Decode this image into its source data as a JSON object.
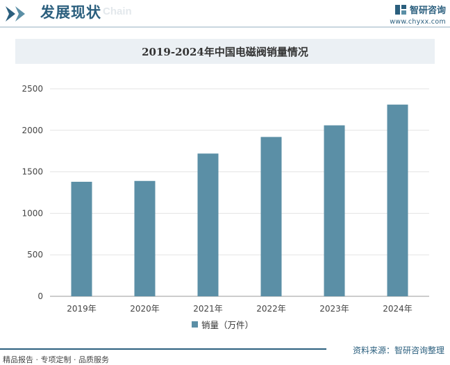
{
  "header": {
    "title": "发展现状",
    "ghost_text": "Chain",
    "brand_name": "智研咨询",
    "brand_url": "www.chyxx.com"
  },
  "chart_data": {
    "type": "bar",
    "title": "2019-2024年中国电磁阀销量情况",
    "categories": [
      "2019年",
      "2020年",
      "2021年",
      "2022年",
      "2023年",
      "2024年"
    ],
    "series": [
      {
        "name": "销量（万件）",
        "values": [
          1380,
          1390,
          1720,
          1920,
          2060,
          2310
        ],
        "color": "#5b8fa6"
      }
    ],
    "xlabel": "",
    "ylabel": "",
    "ylim": [
      0,
      2500
    ],
    "yticks": [
      0,
      500,
      1000,
      1500,
      2000,
      2500
    ],
    "grid": true,
    "legend_position": "bottom"
  },
  "footer": {
    "left": "精品报告 · 专项定制 · 品质服务",
    "source": "资料来源：智研咨询整理"
  }
}
